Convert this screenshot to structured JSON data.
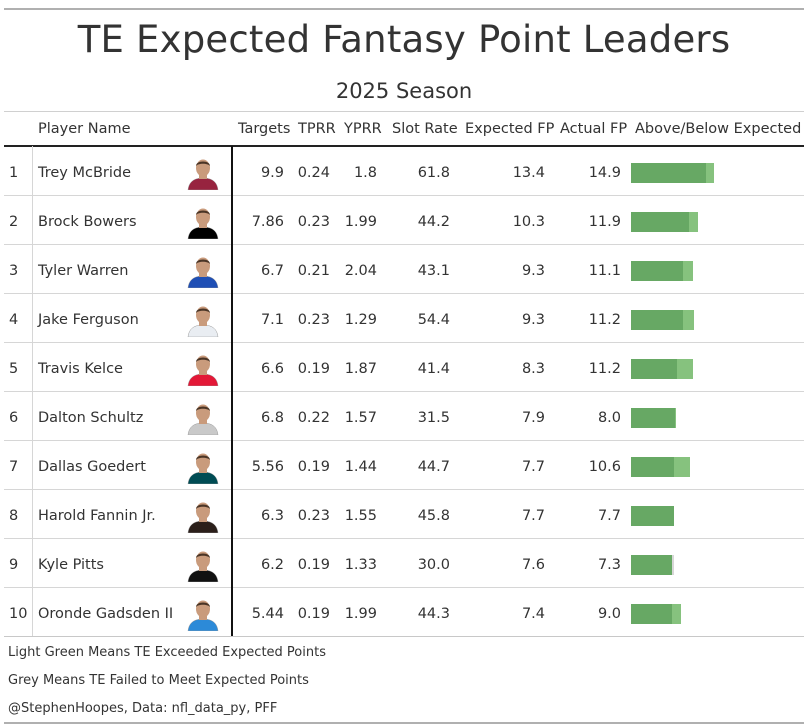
{
  "chart_data": {
    "type": "table",
    "title": "TE Expected Fantasy Point Leaders",
    "subtitle": "2025 Season",
    "columns": [
      "Player Name",
      "Targets",
      "TPRR",
      "YPRR",
      "Slot Rate",
      "Expected FP",
      "Actual FP",
      "Above/Below Expected"
    ],
    "rows": [
      {
        "rank": "1",
        "player": "Trey McBride",
        "targets": "9.9",
        "tprr": "0.24",
        "yprr": "1.8",
        "slot_rate": "61.8",
        "expected_fp": "13.4",
        "actual_fp": "14.9",
        "expected_value": 13.4,
        "actual_value": 14.9,
        "team_color": "#97233F"
      },
      {
        "rank": "2",
        "player": "Brock Bowers",
        "targets": "7.86",
        "tprr": "0.23",
        "yprr": "1.99",
        "slot_rate": "44.2",
        "expected_fp": "10.3",
        "actual_fp": "11.9",
        "expected_value": 10.3,
        "actual_value": 11.9,
        "team_color": "#000000"
      },
      {
        "rank": "3",
        "player": "Tyler Warren",
        "targets": "6.7",
        "tprr": "0.21",
        "yprr": "2.04",
        "slot_rate": "43.1",
        "expected_fp": "9.3",
        "actual_fp": "11.1",
        "expected_value": 9.3,
        "actual_value": 11.1,
        "team_color": "#1F4FB5"
      },
      {
        "rank": "4",
        "player": "Jake Ferguson",
        "targets": "7.1",
        "tprr": "0.23",
        "yprr": "1.29",
        "slot_rate": "54.4",
        "expected_fp": "9.3",
        "actual_fp": "11.2",
        "expected_value": 9.3,
        "actual_value": 11.2,
        "team_color": "#E9EDF2"
      },
      {
        "rank": "5",
        "player": "Travis Kelce",
        "targets": "6.6",
        "tprr": "0.19",
        "yprr": "1.87",
        "slot_rate": "41.4",
        "expected_fp": "8.3",
        "actual_fp": "11.2",
        "expected_value": 8.3,
        "actual_value": 11.2,
        "team_color": "#E31837"
      },
      {
        "rank": "6",
        "player": "Dalton Schultz",
        "targets": "6.8",
        "tprr": "0.22",
        "yprr": "1.57",
        "slot_rate": "31.5",
        "expected_fp": "7.9",
        "actual_fp": "8.0",
        "expected_value": 7.9,
        "actual_value": 8.0,
        "team_color": "#C9C9C9"
      },
      {
        "rank": "7",
        "player": "Dallas Goedert",
        "targets": "5.56",
        "tprr": "0.19",
        "yprr": "1.44",
        "slot_rate": "44.7",
        "expected_fp": "7.7",
        "actual_fp": "10.6",
        "expected_value": 7.7,
        "actual_value": 10.6,
        "team_color": "#004C54"
      },
      {
        "rank": "8",
        "player": "Harold Fannin Jr.",
        "targets": "6.3",
        "tprr": "0.23",
        "yprr": "1.55",
        "slot_rate": "45.8",
        "expected_fp": "7.7",
        "actual_fp": "7.7",
        "expected_value": 7.7,
        "actual_value": 7.7,
        "team_color": "#2B1F1A"
      },
      {
        "rank": "9",
        "player": "Kyle Pitts",
        "targets": "6.2",
        "tprr": "0.19",
        "yprr": "1.33",
        "slot_rate": "30.0",
        "expected_fp": "7.6",
        "actual_fp": "7.3",
        "expected_value": 7.6,
        "actual_value": 7.3,
        "team_color": "#111111"
      },
      {
        "rank": "10",
        "player": "Oronde Gadsden II",
        "targets": "5.44",
        "tprr": "0.19",
        "yprr": "1.99",
        "slot_rate": "44.3",
        "expected_fp": "7.4",
        "actual_fp": "9.0",
        "expected_value": 7.4,
        "actual_value": 9.0,
        "team_color": "#2C8AD8"
      }
    ],
    "bar_colors": {
      "expected": "#67a864",
      "above": "#86c27e",
      "below": "#d7d7d7"
    }
  },
  "notes": [
    "Light Green Means TE Exceeded Expected Points",
    "Grey Means TE Failed to Meet Expected Points",
    "@StephenHoopes, Data: nfl_data_py, PFF"
  ]
}
